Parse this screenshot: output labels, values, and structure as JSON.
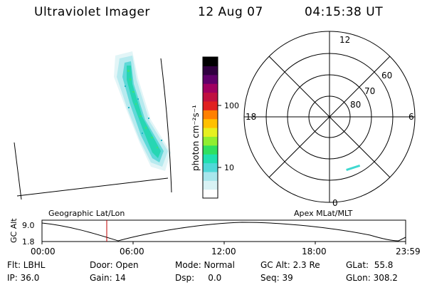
{
  "header": {
    "title": "Ultraviolet Imager",
    "date": "12 Aug 07",
    "time": "04:15:38 UT"
  },
  "colorbar": {
    "unit_label": "photon cm⁻²s⁻¹",
    "ticks": [
      "100",
      "10"
    ],
    "colors": [
      "#ffffff",
      "#d8f2f4",
      "#a8e6ec",
      "#50d8d8",
      "#20e0b0",
      "#30e060",
      "#90ee30",
      "#e6f020",
      "#ffc000",
      "#ff8000",
      "#e02020",
      "#c01040",
      "#a00060",
      "#60006a",
      "#300040",
      "#000000"
    ]
  },
  "polar": {
    "clock_labels": [
      "12",
      "6",
      "0",
      "18"
    ],
    "lat_labels": [
      "60",
      "70",
      "80"
    ]
  },
  "timeline": {
    "left_title": "Geographic Lat/Lon",
    "right_title": "Apex MLat/MLT",
    "y_axis_label": "GC Alt",
    "y_ticks": [
      "9.0",
      "1.8"
    ],
    "x_ticks": [
      "00:00",
      "06:00",
      "12:00",
      "18:00",
      "23:59"
    ],
    "marker_color": "#c00000"
  },
  "info": {
    "filter": "Flt: LBHL",
    "ip": "IP: 36.0",
    "door": "Door: Open",
    "gain": "Gain: 14",
    "mode": "Mode: Normal",
    "dsp": "Dsp:     0.0",
    "gc_alt": "GC Alt: 2.3 Re",
    "seq": "Seq: 39",
    "glat": "GLat:  55.8",
    "glon": "GLon: 308.2"
  }
}
